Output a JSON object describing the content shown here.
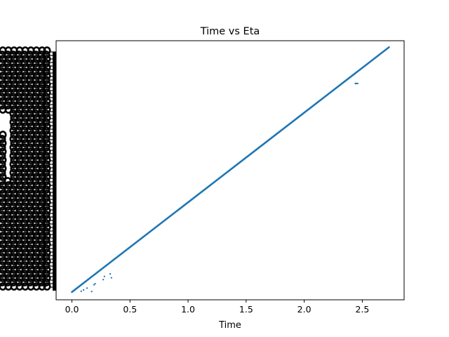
{
  "chart_data": {
    "type": "scatter",
    "title": "Time vs Eta",
    "xlabel": "Time",
    "ylabel": "",
    "xlim": [
      -0.136,
      2.86
    ],
    "ylim": [
      0,
      1
    ],
    "x_ticks": [
      "0.0",
      "0.5",
      "1.0",
      "1.5",
      "2.0",
      "2.5"
    ],
    "x_tick_values": [
      0.0,
      0.5,
      1.0,
      1.5,
      2.0,
      2.5
    ],
    "y_tick_labels_overlapping": true,
    "grid": false,
    "legend": "none",
    "series": [
      {
        "color": "#1f77b4",
        "main_trend": {
          "x_start": 0.0,
          "x_end": 2.73,
          "y_start": 0.03,
          "y_end": 0.975
        },
        "outliers": [
          {
            "x": 0.08,
            "y": 0.033
          },
          {
            "x": 0.1,
            "y": 0.038
          },
          {
            "x": 0.13,
            "y": 0.045
          },
          {
            "x": 0.17,
            "y": 0.032
          },
          {
            "x": 0.19,
            "y": 0.058
          },
          {
            "x": 0.2,
            "y": 0.062
          },
          {
            "x": 0.27,
            "y": 0.078
          },
          {
            "x": 0.28,
            "y": 0.09
          },
          {
            "x": 0.33,
            "y": 0.1
          },
          {
            "x": 0.34,
            "y": 0.085
          },
          {
            "x": 2.44,
            "y": 0.835
          },
          {
            "x": 2.45,
            "y": 0.835
          },
          {
            "x": 2.46,
            "y": 0.835
          }
        ]
      }
    ]
  }
}
